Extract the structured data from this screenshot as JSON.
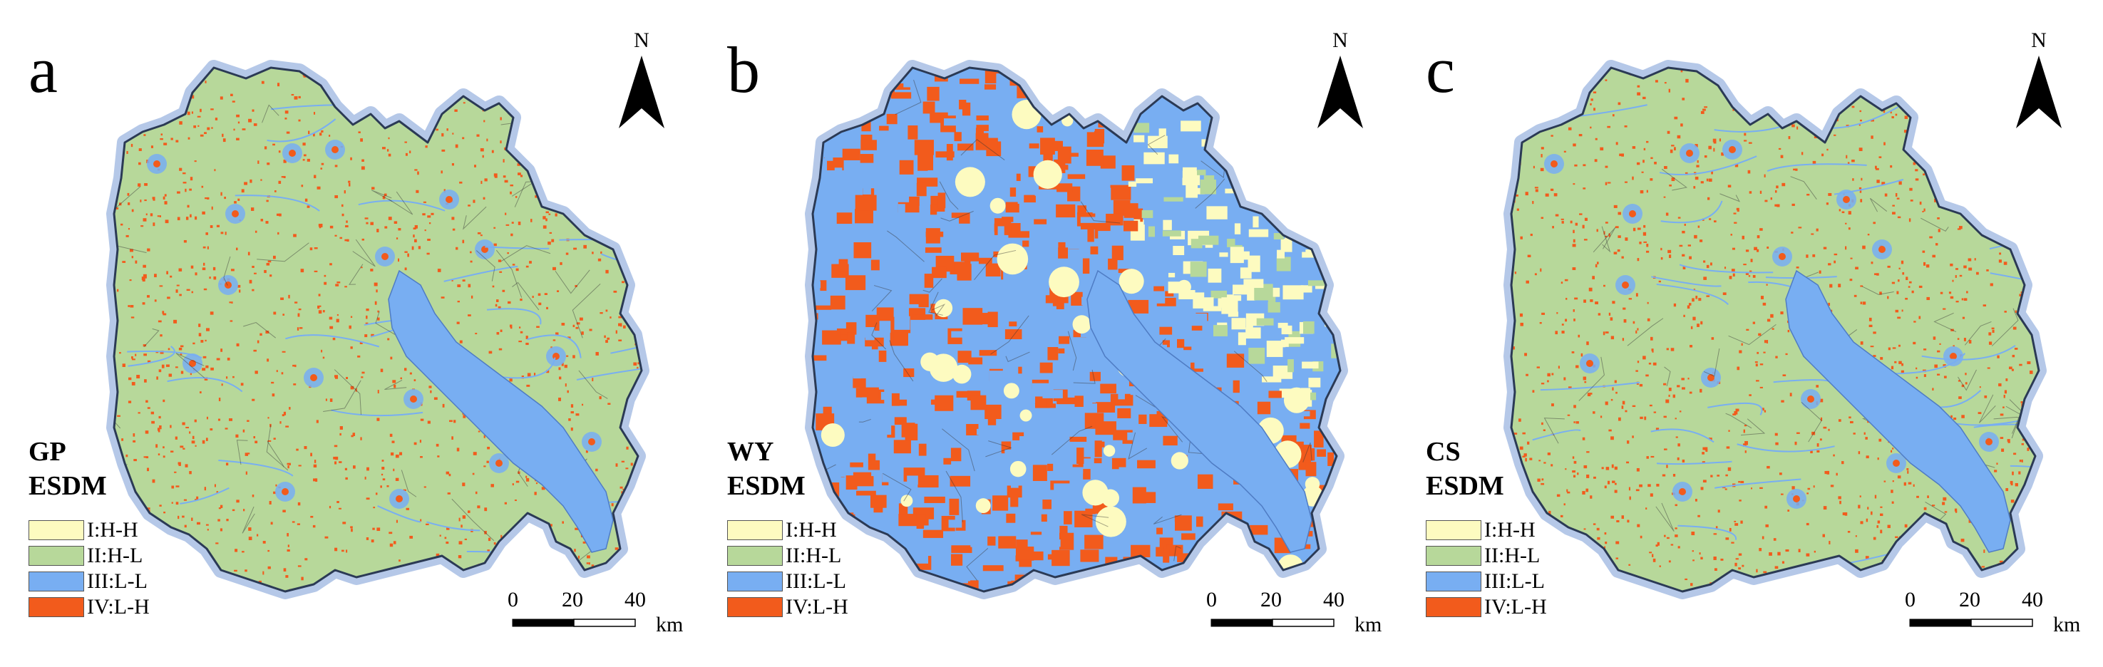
{
  "colors": {
    "hh": "#fdfbc0",
    "hl": "#b7d89a",
    "ll": "#78aef2",
    "lh": "#f25b1c",
    "halo": "#b5c8e8",
    "outline": "#2b3a55"
  },
  "legend": {
    "items": [
      {
        "label": "I:H-H",
        "class": "hh"
      },
      {
        "label": "II:H-L",
        "class": "hl"
      },
      {
        "label": "III:L-L",
        "class": "ll"
      },
      {
        "label": "IV:L-H",
        "class": "lh"
      }
    ]
  },
  "north_label": "N",
  "scalebar": {
    "ticks": [
      "0",
      "20",
      "40"
    ],
    "unit": "km"
  },
  "panels": [
    {
      "letter": "a",
      "title_line1": "GP",
      "title_line2": "ESDM",
      "dominant": "hl",
      "density": "sparse"
    },
    {
      "letter": "b",
      "title_line1": "WY",
      "title_line2": "ESDM",
      "dominant": "mixed",
      "density": "dense"
    },
    {
      "letter": "c",
      "title_line1": "CS",
      "title_line2": "ESDM",
      "dominant": "hl",
      "density": "sparse"
    }
  ]
}
